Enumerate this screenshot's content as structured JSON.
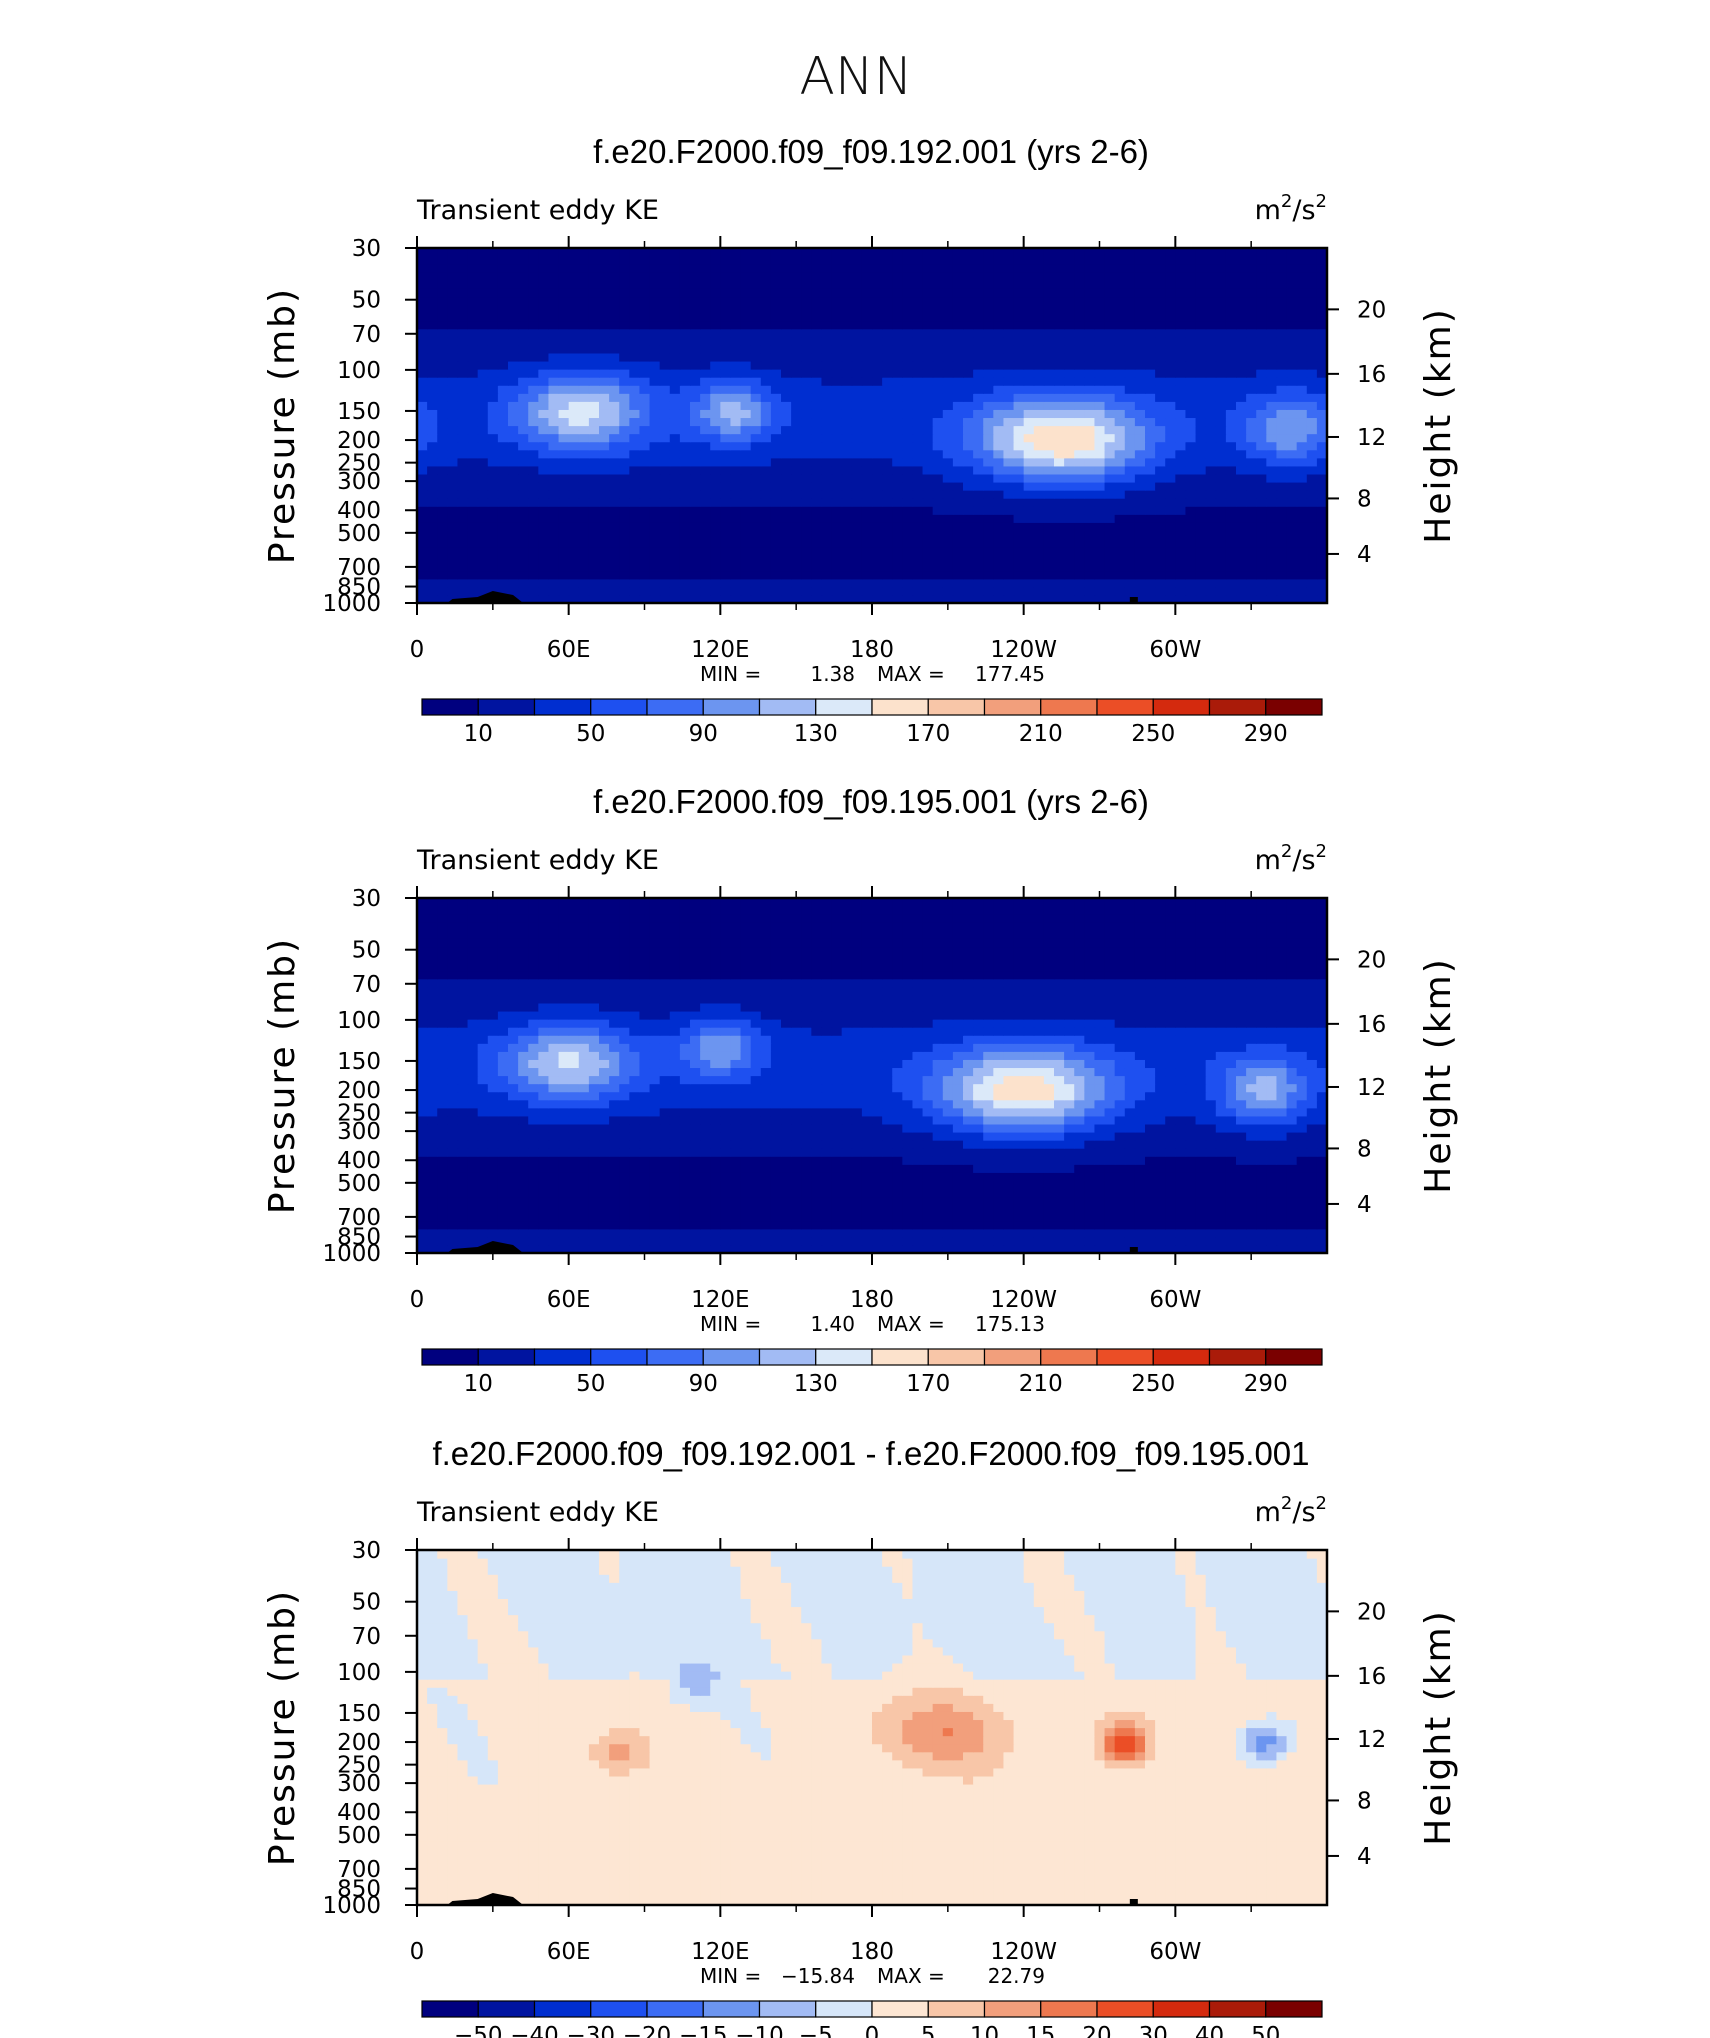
{
  "figure_title": "ANN",
  "chart_data": [
    {
      "type": "heatmap",
      "title": "f.e20.F2000.f09_f09.192.001 (yrs 2-6)",
      "left_label": "Transient eddy KE",
      "units": {
        "base": "m",
        "exp": "2",
        "mid": "/s",
        "exp2": "2"
      },
      "ylabel": "Pressure (mb)",
      "ylabel_right": "Height (km)",
      "x_ticks": [
        "0",
        "60E",
        "120E",
        "180",
        "120W",
        "60W"
      ],
      "xlim": [
        0,
        360
      ],
      "y_ticks": [
        "30",
        "50",
        "70",
        "100",
        "150",
        "200",
        "250",
        "300",
        "400",
        "500",
        "700",
        "850",
        "1000"
      ],
      "y_ticks_right": [
        "20",
        "16",
        "12",
        "8",
        "4"
      ],
      "ylim_mb": [
        1000,
        30
      ],
      "min_label": "MIN =",
      "min_value": "1.38",
      "max_label": "MAX =",
      "max_value": "177.45",
      "colorbar_labels": [
        "10",
        "50",
        "90",
        "130",
        "170",
        "210",
        "250",
        "290"
      ],
      "features": [
        {
          "lon": 65,
          "p": 150,
          "value": 140
        },
        {
          "lon": 125,
          "p": 150,
          "value": 120
        },
        {
          "lon": 255,
          "p": 200,
          "value": 172
        },
        {
          "lon": 345,
          "p": 180,
          "value": 110
        }
      ]
    },
    {
      "type": "heatmap",
      "title": "f.e20.F2000.f09_f09.195.001 (yrs 2-6)",
      "left_label": "Transient eddy KE",
      "units": {
        "base": "m",
        "exp": "2",
        "mid": "/s",
        "exp2": "2"
      },
      "ylabel": "Pressure (mb)",
      "ylabel_right": "Height (km)",
      "x_ticks": [
        "0",
        "60E",
        "120E",
        "180",
        "120W",
        "60W"
      ],
      "xlim": [
        0,
        360
      ],
      "y_ticks": [
        "30",
        "50",
        "70",
        "100",
        "150",
        "200",
        "250",
        "300",
        "400",
        "500",
        "700",
        "850",
        "1000"
      ],
      "y_ticks_right": [
        "20",
        "16",
        "12",
        "8",
        "4"
      ],
      "ylim_mb": [
        1000,
        30
      ],
      "min_label": "MIN =",
      "min_value": "1.40",
      "max_label": "MAX =",
      "max_value": "175.13",
      "colorbar_labels": [
        "10",
        "50",
        "90",
        "130",
        "170",
        "210",
        "250",
        "290"
      ],
      "features": [
        {
          "lon": 60,
          "p": 150,
          "value": 135
        },
        {
          "lon": 120,
          "p": 130,
          "value": 110
        },
        {
          "lon": 240,
          "p": 200,
          "value": 168
        },
        {
          "lon": 335,
          "p": 200,
          "value": 120
        }
      ]
    },
    {
      "type": "heatmap",
      "title": "f.e20.F2000.f09_f09.192.001 - f.e20.F2000.f09_f09.195.001",
      "left_label": "Transient eddy KE",
      "units": {
        "base": "m",
        "exp": "2",
        "mid": "/s",
        "exp2": "2"
      },
      "ylabel": "Pressure (mb)",
      "ylabel_right": "Height (km)",
      "x_ticks": [
        "0",
        "60E",
        "120E",
        "180",
        "120W",
        "60W"
      ],
      "xlim": [
        0,
        360
      ],
      "y_ticks": [
        "30",
        "50",
        "70",
        "100",
        "150",
        "200",
        "250",
        "300",
        "400",
        "500",
        "700",
        "850",
        "1000"
      ],
      "y_ticks_right": [
        "20",
        "16",
        "12",
        "8",
        "4"
      ],
      "ylim_mb": [
        1000,
        30
      ],
      "min_label": "MIN =",
      "min_value": "−15.84",
      "max_label": "MAX =",
      "max_value": "22.79",
      "colorbar_labels": [
        "−50",
        "−40",
        "−30",
        "−20",
        "−15",
        "−10",
        "−5",
        "0",
        "5",
        "10",
        "15",
        "20",
        "30",
        "40",
        "50"
      ],
      "features": [
        {
          "lon": 280,
          "p": 200,
          "value": 22.79
        },
        {
          "lon": 208,
          "p": 180,
          "value": 12
        },
        {
          "lon": 335,
          "p": 200,
          "value": -15.84
        },
        {
          "lon": 110,
          "p": 110,
          "value": -8
        },
        {
          "lon": 80,
          "p": 220,
          "value": 10
        }
      ]
    }
  ],
  "colors": {
    "ke_scale": [
      "#00007f",
      "#0014a0",
      "#002ed0",
      "#1e50f0",
      "#3c6cf4",
      "#6c95f0",
      "#a2bbf4",
      "#dbe9f9",
      "#fce2cc",
      "#f8c6a8",
      "#f29f7c",
      "#ee784f",
      "#eb4e26",
      "#d42a0e",
      "#aa1b09",
      "#7a0000"
    ],
    "diff_scale": [
      "#00007f",
      "#0014a0",
      "#002ed0",
      "#1e50f0",
      "#3c6cf4",
      "#6c95f0",
      "#a2bbf4",
      "#d6e6f9",
      "#fde6d3",
      "#f8c6a8",
      "#f29f7c",
      "#ee784f",
      "#eb4e26",
      "#d42a0e",
      "#aa1b09",
      "#7a0000"
    ],
    "topo": "#000000"
  }
}
